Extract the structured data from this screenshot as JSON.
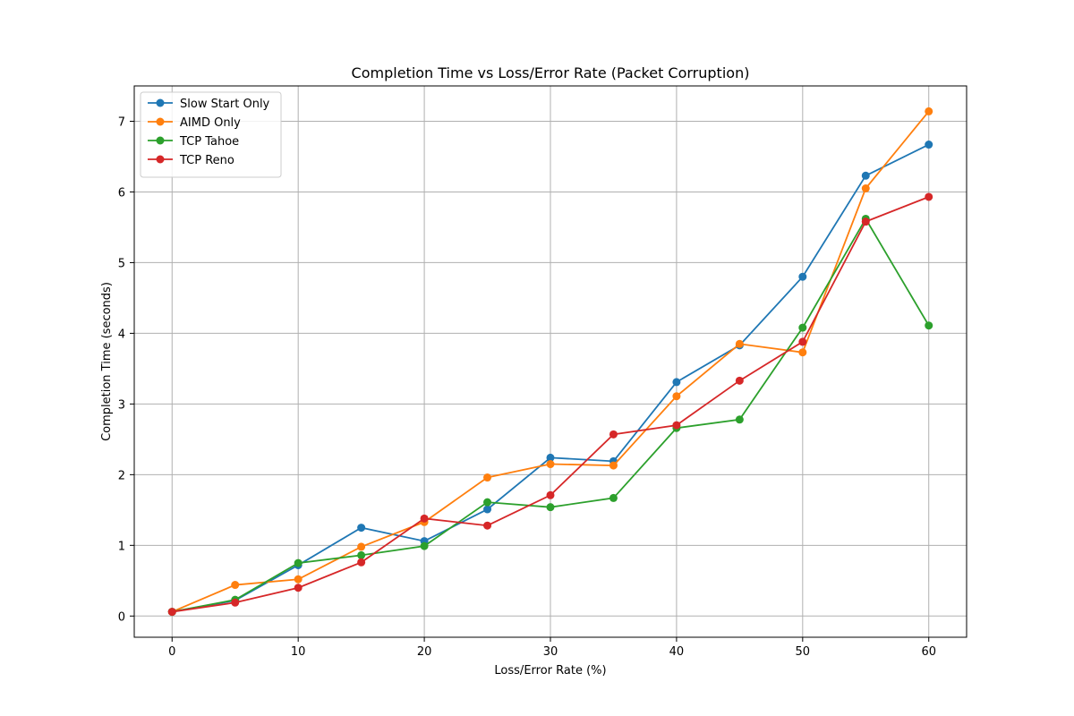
{
  "chart_data": {
    "type": "line",
    "title": "Completion Time vs Loss/Error Rate (Packet Corruption)",
    "xlabel": "Loss/Error Rate (%)",
    "ylabel": "Completion Time (seconds)",
    "x": [
      0,
      5,
      10,
      15,
      20,
      25,
      30,
      35,
      40,
      45,
      50,
      55,
      60
    ],
    "xlim": [
      -3,
      63
    ],
    "ylim": [
      -0.3,
      7.5
    ],
    "xticks": [
      0,
      10,
      20,
      30,
      40,
      50,
      60
    ],
    "yticks": [
      0,
      1,
      2,
      3,
      4,
      5,
      6,
      7
    ],
    "grid": true,
    "legend_position": "top-left",
    "marker": "circle",
    "series": [
      {
        "name": "Slow Start Only",
        "color": "#1f77b4",
        "values": [
          0.06,
          0.22,
          0.72,
          1.25,
          1.06,
          1.51,
          2.24,
          2.19,
          3.31,
          3.83,
          4.8,
          6.23,
          6.67
        ]
      },
      {
        "name": "AIMD Only",
        "color": "#ff7f0e",
        "values": [
          0.06,
          0.44,
          0.52,
          0.98,
          1.33,
          1.96,
          2.15,
          2.13,
          3.11,
          3.85,
          3.73,
          6.05,
          7.14
        ]
      },
      {
        "name": "TCP Tahoe",
        "color": "#2ca02c",
        "values": [
          0.06,
          0.23,
          0.75,
          0.86,
          0.99,
          1.61,
          1.54,
          1.67,
          2.66,
          2.78,
          4.08,
          5.62,
          4.11
        ]
      },
      {
        "name": "TCP Reno",
        "color": "#d62728",
        "values": [
          0.06,
          0.19,
          0.4,
          0.76,
          1.38,
          1.28,
          1.71,
          2.57,
          2.7,
          3.33,
          3.88,
          5.58,
          5.93
        ]
      }
    ]
  }
}
